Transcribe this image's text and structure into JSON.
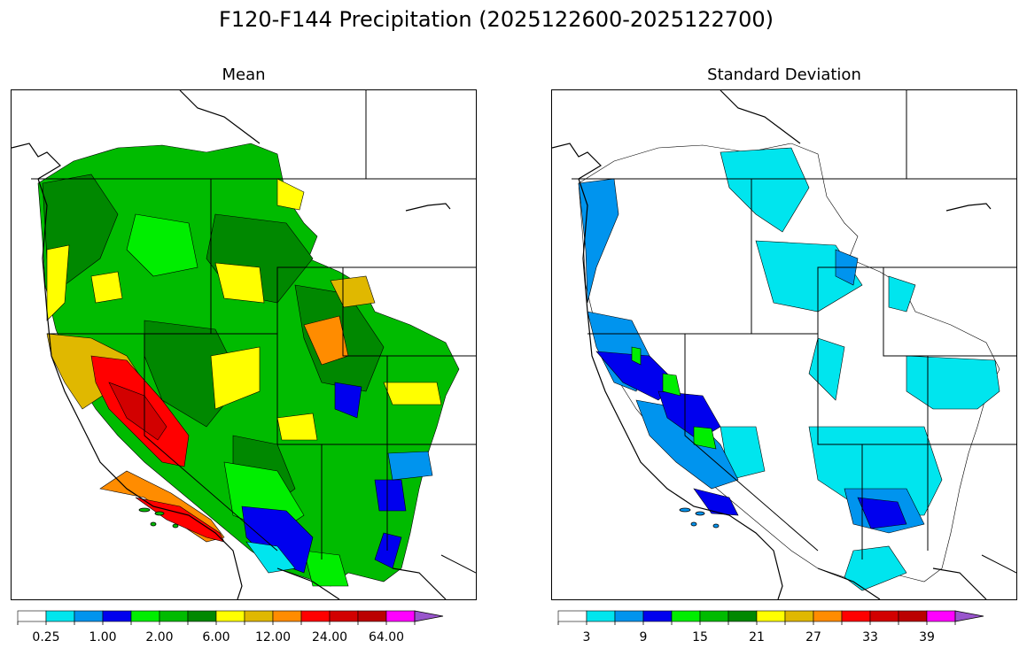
{
  "title": "F120-F144 Precipitation (2025122600-2025122700)",
  "panels": [
    {
      "title": "Mean",
      "colorbar": {
        "colors": [
          "#ffffff",
          "#00e5ee",
          "#0094ee",
          "#0000ee",
          "#00ee00",
          "#00bb00",
          "#008800",
          "#ffff00",
          "#e0b800",
          "#ff8c00",
          "#ff0000",
          "#d20000",
          "#bb0000",
          "#ff00ff",
          "#9955cc"
        ],
        "tick_labels": [
          "0.25",
          "1.00",
          "2.00",
          "6.00",
          "12.00",
          "24.00",
          "64.00"
        ]
      }
    },
    {
      "title": "Standard Deviation",
      "colorbar": {
        "colors": [
          "#ffffff",
          "#00e5ee",
          "#0094ee",
          "#0000ee",
          "#00ee00",
          "#00bb00",
          "#008800",
          "#ffff00",
          "#e0b800",
          "#ff8c00",
          "#ff0000",
          "#d20000",
          "#bb0000",
          "#ff00ff",
          "#9955cc"
        ],
        "tick_labels": [
          "3",
          "9",
          "15",
          "21",
          "27",
          "33",
          "39"
        ]
      }
    }
  ]
}
